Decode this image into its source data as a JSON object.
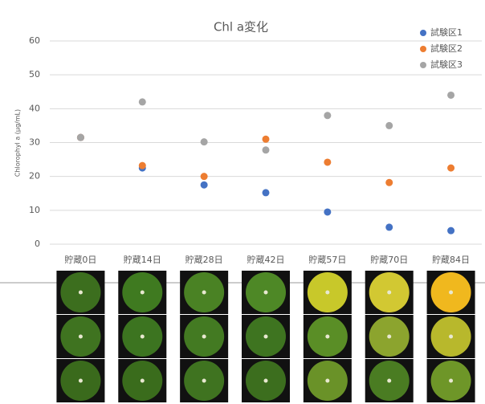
{
  "chart_data": {
    "type": "dot",
    "title": "Chl a変化",
    "y_label": "Chlorophyl a (μg/mL)",
    "categories": [
      "貯蔵0日",
      "貯蔵14日",
      "貯蔵28日",
      "貯蔵42日",
      "貯蔵57日",
      "貯蔵70日",
      "貯蔵84日"
    ],
    "series": [
      {
        "name": "試験区1",
        "color": "#4472c4",
        "values": [
          31.5,
          22.5,
          17.5,
          15.2,
          9.5,
          5,
          4
        ]
      },
      {
        "name": "試験区2",
        "color": "#ed7d31",
        "values": [
          31.5,
          23.2,
          20,
          31,
          24.2,
          18.2,
          22.5
        ]
      },
      {
        "name": "試験区3",
        "color": "#a5a5a5",
        "values": [
          31.5,
          42,
          30.2,
          27.8,
          38,
          35,
          44
        ]
      }
    ],
    "ylim": [
      0,
      60
    ],
    "yticks": [
      0,
      10,
      20,
      30,
      40,
      50,
      60
    ],
    "grid": true,
    "legend": "top-right"
  }
}
